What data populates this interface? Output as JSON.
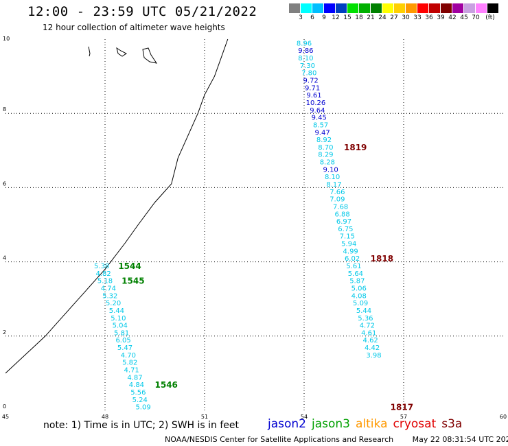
{
  "title": "12:00 - 23:59 UTC 05/21/2022",
  "subtitle": "12 hour collection of altimeter wave heights",
  "colorbar": {
    "colors": [
      "#808080",
      "#00ffff",
      "#00bfff",
      "#0000ff",
      "#0040c0",
      "#00e000",
      "#00b000",
      "#008000",
      "#ffff00",
      "#ffd000",
      "#ff9900",
      "#ff0000",
      "#c00000",
      "#800000",
      "#a000a0",
      "#c8a0e0",
      "#ff80ff",
      "#000000"
    ],
    "labels": [
      "3",
      "6",
      "9",
      "12",
      "15",
      "18",
      "21",
      "24",
      "27",
      "30",
      "33",
      "36",
      "39",
      "42",
      "45",
      "70",
      "(ft)"
    ]
  },
  "axes": {
    "x_ticks": [
      "45",
      "48",
      "51",
      "54",
      "57",
      "60"
    ],
    "y_ticks": [
      "0",
      "2",
      "4",
      "6",
      "8",
      "10"
    ],
    "x_range": [
      45,
      60
    ],
    "y_range": [
      0,
      10
    ]
  },
  "colors": {
    "cyan": "#00c8e8",
    "blue": "#0000d0",
    "green": "#008000",
    "darkred": "#800000",
    "coast": "#000000",
    "grid": "#000000"
  },
  "tracks": [
    {
      "name": "track-west",
      "points": [
        {
          "lon": 47.9,
          "lat": 3.9,
          "value": "5.38",
          "color": "cyan"
        },
        {
          "lon": 47.95,
          "lat": 3.7,
          "value": "4.82",
          "color": "cyan"
        },
        {
          "lon": 48.0,
          "lat": 3.5,
          "value": "5.18",
          "color": "cyan"
        },
        {
          "lon": 48.1,
          "lat": 3.3,
          "value": "4.74",
          "color": "cyan"
        },
        {
          "lon": 48.15,
          "lat": 3.1,
          "value": "5.32",
          "color": "cyan"
        },
        {
          "lon": 48.25,
          "lat": 2.9,
          "value": "5.20",
          "color": "cyan"
        },
        {
          "lon": 48.35,
          "lat": 2.7,
          "value": "5.44",
          "color": "cyan"
        },
        {
          "lon": 48.4,
          "lat": 2.5,
          "value": "5.10",
          "color": "cyan"
        },
        {
          "lon": 48.45,
          "lat": 2.3,
          "value": "5.04",
          "color": "cyan"
        },
        {
          "lon": 48.5,
          "lat": 2.1,
          "value": "5.81",
          "color": "cyan"
        },
        {
          "lon": 48.55,
          "lat": 1.9,
          "value": "6.05",
          "color": "cyan"
        },
        {
          "lon": 48.6,
          "lat": 1.7,
          "value": "5.47",
          "color": "cyan"
        },
        {
          "lon": 48.7,
          "lat": 1.5,
          "value": "4.70",
          "color": "cyan"
        },
        {
          "lon": 48.75,
          "lat": 1.3,
          "value": "5.82",
          "color": "cyan"
        },
        {
          "lon": 48.8,
          "lat": 1.1,
          "value": "4.71",
          "color": "cyan"
        },
        {
          "lon": 48.9,
          "lat": 0.9,
          "value": "4.87",
          "color": "cyan"
        },
        {
          "lon": 48.95,
          "lat": 0.7,
          "value": "4.84",
          "color": "cyan"
        },
        {
          "lon": 49.0,
          "lat": 0.5,
          "value": "5.56",
          "color": "cyan"
        },
        {
          "lon": 49.05,
          "lat": 0.3,
          "value": "5.24",
          "color": "cyan"
        },
        {
          "lon": 49.15,
          "lat": 0.1,
          "value": "5.09",
          "color": "cyan"
        }
      ]
    },
    {
      "name": "track-east",
      "points": [
        {
          "lon": 54.0,
          "lat": 9.9,
          "value": "8.96",
          "color": "cyan"
        },
        {
          "lon": 54.05,
          "lat": 9.7,
          "value": "9.86",
          "color": "blue"
        },
        {
          "lon": 54.05,
          "lat": 9.5,
          "value": "8.10",
          "color": "cyan"
        },
        {
          "lon": 54.1,
          "lat": 9.3,
          "value": "7.30",
          "color": "cyan"
        },
        {
          "lon": 54.15,
          "lat": 9.1,
          "value": "7.80",
          "color": "cyan"
        },
        {
          "lon": 54.2,
          "lat": 8.9,
          "value": "9.72",
          "color": "blue"
        },
        {
          "lon": 54.25,
          "lat": 8.7,
          "value": "9.71",
          "color": "blue"
        },
        {
          "lon": 54.3,
          "lat": 8.5,
          "value": "9.61",
          "color": "blue"
        },
        {
          "lon": 54.35,
          "lat": 8.3,
          "value": "10.26",
          "color": "blue"
        },
        {
          "lon": 54.4,
          "lat": 8.1,
          "value": "9.64",
          "color": "blue"
        },
        {
          "lon": 54.45,
          "lat": 7.9,
          "value": "9.45",
          "color": "blue"
        },
        {
          "lon": 54.5,
          "lat": 7.7,
          "value": "8.57",
          "color": "cyan"
        },
        {
          "lon": 54.55,
          "lat": 7.5,
          "value": "9.47",
          "color": "blue"
        },
        {
          "lon": 54.6,
          "lat": 7.3,
          "value": "8.92",
          "color": "cyan"
        },
        {
          "lon": 54.65,
          "lat": 7.1,
          "value": "8.70",
          "color": "cyan"
        },
        {
          "lon": 54.65,
          "lat": 6.9,
          "value": "8.29",
          "color": "cyan"
        },
        {
          "lon": 54.7,
          "lat": 6.7,
          "value": "8.28",
          "color": "cyan"
        },
        {
          "lon": 54.8,
          "lat": 6.5,
          "value": "9.10",
          "color": "blue"
        },
        {
          "lon": 54.85,
          "lat": 6.3,
          "value": "8.10",
          "color": "cyan"
        },
        {
          "lon": 54.9,
          "lat": 6.1,
          "value": "8.17",
          "color": "cyan"
        },
        {
          "lon": 55.0,
          "lat": 5.9,
          "value": "7.66",
          "color": "cyan"
        },
        {
          "lon": 55.0,
          "lat": 5.7,
          "value": "7.09",
          "color": "cyan"
        },
        {
          "lon": 55.1,
          "lat": 5.5,
          "value": "7.68",
          "color": "cyan"
        },
        {
          "lon": 55.15,
          "lat": 5.3,
          "value": "6.88",
          "color": "cyan"
        },
        {
          "lon": 55.2,
          "lat": 5.1,
          "value": "6.97",
          "color": "cyan"
        },
        {
          "lon": 55.25,
          "lat": 4.9,
          "value": "6.75",
          "color": "cyan"
        },
        {
          "lon": 55.3,
          "lat": 4.7,
          "value": "7.15",
          "color": "cyan"
        },
        {
          "lon": 55.35,
          "lat": 4.5,
          "value": "5.94",
          "color": "cyan"
        },
        {
          "lon": 55.4,
          "lat": 4.3,
          "value": "4.99",
          "color": "cyan"
        },
        {
          "lon": 55.45,
          "lat": 4.1,
          "value": "6.02",
          "color": "cyan"
        },
        {
          "lon": 55.5,
          "lat": 3.9,
          "value": "5.61",
          "color": "cyan"
        },
        {
          "lon": 55.55,
          "lat": 3.7,
          "value": "5.64",
          "color": "cyan"
        },
        {
          "lon": 55.6,
          "lat": 3.5,
          "value": "5.87",
          "color": "cyan"
        },
        {
          "lon": 55.65,
          "lat": 3.3,
          "value": "5.06",
          "color": "cyan"
        },
        {
          "lon": 55.65,
          "lat": 3.1,
          "value": "4.08",
          "color": "cyan"
        },
        {
          "lon": 55.7,
          "lat": 2.9,
          "value": "5.09",
          "color": "cyan"
        },
        {
          "lon": 55.8,
          "lat": 2.7,
          "value": "5.44",
          "color": "cyan"
        },
        {
          "lon": 55.85,
          "lat": 2.5,
          "value": "5.36",
          "color": "cyan"
        },
        {
          "lon": 55.9,
          "lat": 2.3,
          "value": "4.72",
          "color": "cyan"
        },
        {
          "lon": 55.95,
          "lat": 2.1,
          "value": "4.61",
          "color": "cyan"
        },
        {
          "lon": 56.0,
          "lat": 1.9,
          "value": "4.62",
          "color": "cyan"
        },
        {
          "lon": 56.05,
          "lat": 1.7,
          "value": "4.42",
          "color": "cyan"
        },
        {
          "lon": 56.1,
          "lat": 1.5,
          "value": "3.98",
          "color": "cyan"
        }
      ]
    }
  ],
  "pass_times": [
    {
      "label": "1544",
      "lon": 48.4,
      "lat": 3.9,
      "color": "green"
    },
    {
      "label": "1545",
      "lon": 48.5,
      "lat": 3.5,
      "color": "green"
    },
    {
      "label": "1546",
      "lon": 49.5,
      "lat": 0.7,
      "color": "green"
    },
    {
      "label": "1819",
      "lon": 55.2,
      "lat": 7.1,
      "color": "darkred"
    },
    {
      "label": "1818",
      "lon": 56.0,
      "lat": 4.1,
      "color": "darkred"
    },
    {
      "label": "1817",
      "lon": 56.6,
      "lat": 0.1,
      "color": "darkred"
    }
  ],
  "coastline": [
    [
      45.0,
      1.0
    ],
    [
      45.6,
      1.5
    ],
    [
      46.2,
      2.0
    ],
    [
      46.8,
      2.6
    ],
    [
      47.4,
      3.2
    ],
    [
      48.0,
      3.8
    ],
    [
      48.6,
      4.5
    ],
    [
      49.0,
      5.0
    ],
    [
      49.5,
      5.6
    ],
    [
      50.0,
      6.1
    ],
    [
      50.2,
      6.8
    ],
    [
      50.5,
      7.4
    ],
    [
      50.8,
      8.0
    ],
    [
      51.0,
      8.5
    ],
    [
      51.3,
      9.0
    ],
    [
      51.5,
      9.5
    ],
    [
      51.7,
      10.0
    ]
  ],
  "note": "note: 1) Time is in UTC; 2) SWH is in feet",
  "legend": [
    {
      "label": "jason2",
      "color": "#0000d0"
    },
    {
      "label": "jason3",
      "color": "#00a000"
    },
    {
      "label": "altika",
      "color": "#ff9900"
    },
    {
      "label": "cryosat",
      "color": "#e00000"
    },
    {
      "label": "s3a",
      "color": "#800000"
    }
  ],
  "footer": {
    "credit": "NOAA/NESDIS Center for Satellite Applications and Research",
    "timestamp": "May 22 08:31:54 UTC 2022"
  }
}
